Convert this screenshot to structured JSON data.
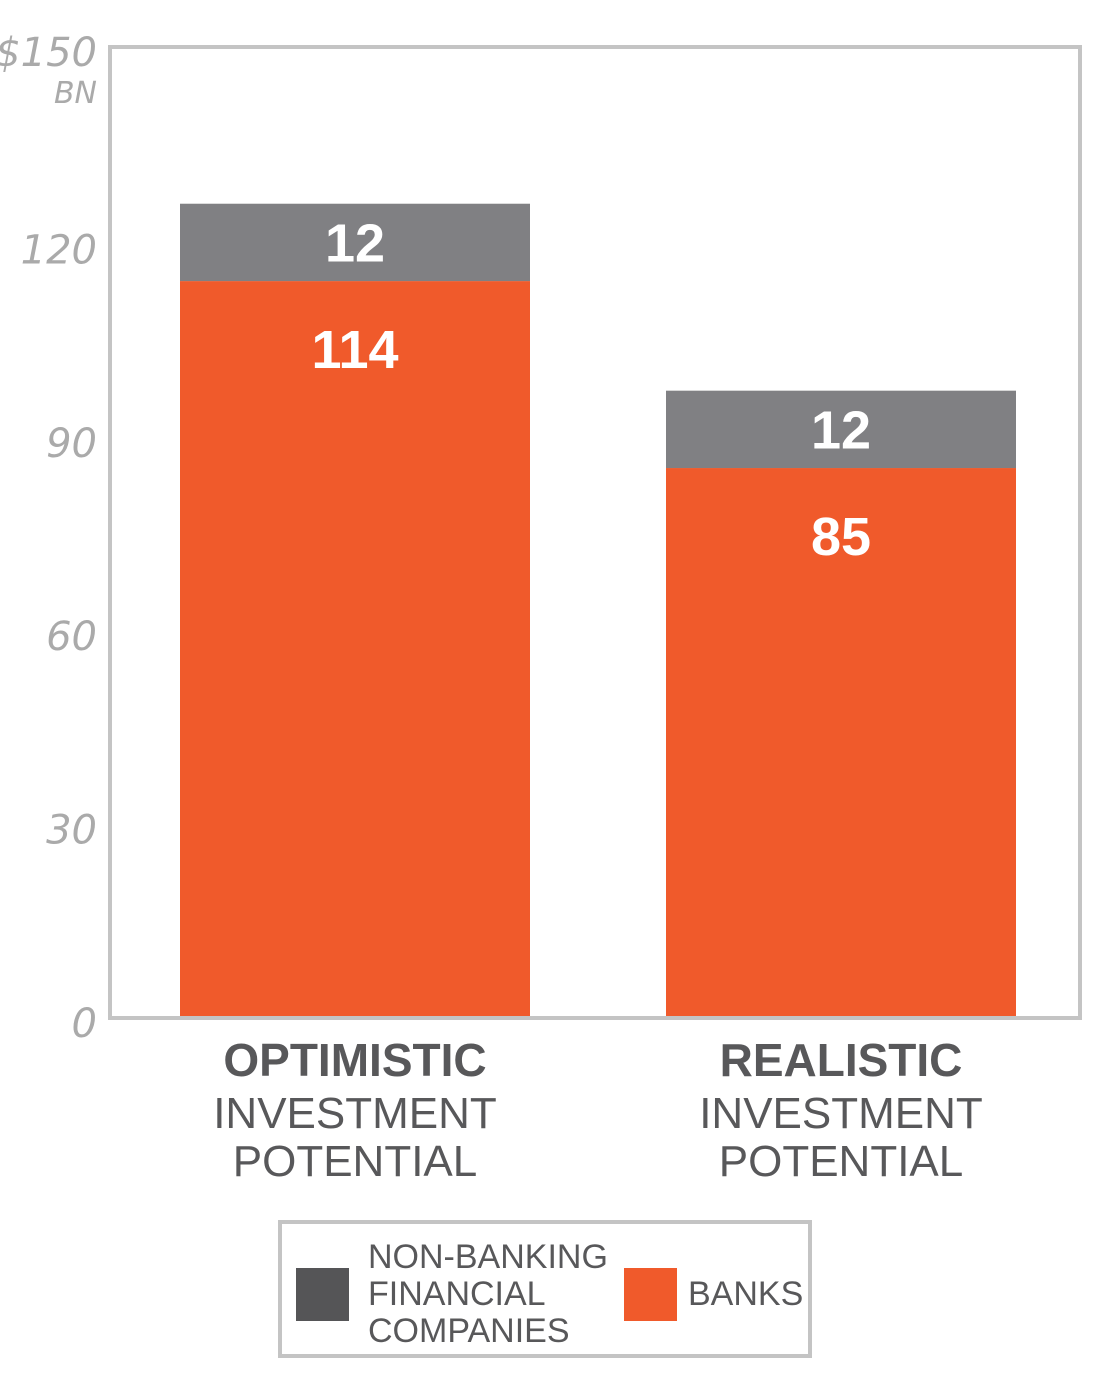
{
  "chart_data": {
    "type": "bar",
    "stacked": true,
    "y_unit_prefix": "$150",
    "y_unit_suffix": "BN",
    "ylim": [
      0,
      150
    ],
    "yticks": [
      "0",
      "30",
      "60",
      "90",
      "120"
    ],
    "categories": [
      {
        "bold": "OPTIMISTIC",
        "line1": "INVESTMENT",
        "line2": "POTENTIAL"
      },
      {
        "bold": "REALISTIC",
        "line1": "INVESTMENT",
        "line2": "POTENTIAL"
      }
    ],
    "series": [
      {
        "name": "BANKS",
        "color": "#f05a2b",
        "values": [
          114,
          85
        ]
      },
      {
        "name": "NON-BANKING FINANCIAL COMPANIES",
        "color": "#808083",
        "values": [
          12,
          12
        ]
      }
    ],
    "grid": false,
    "legend_position": "bottom-center"
  },
  "legend": {
    "items": [
      {
        "lines": [
          "NON-BANKING",
          "FINANCIAL",
          "COMPANIES"
        ],
        "color": "#555557"
      },
      {
        "lines": [
          "BANKS"
        ],
        "color": "#f05a2b"
      }
    ]
  }
}
